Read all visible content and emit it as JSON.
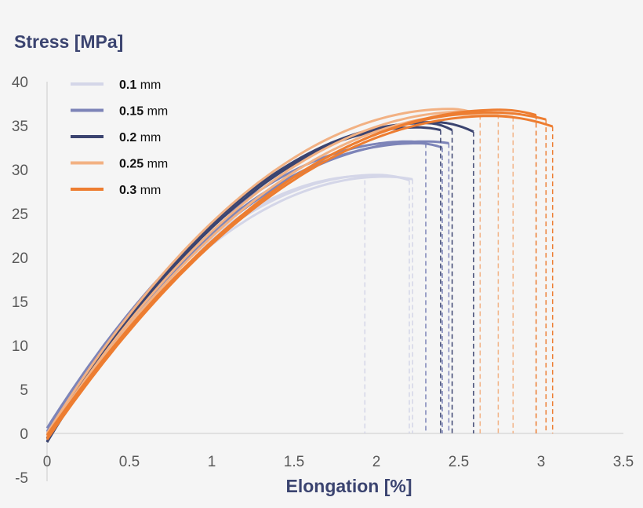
{
  "chart_data": {
    "type": "line",
    "ylabel": "Stress [MPa]",
    "xlabel": "Elongation [%]",
    "xlim": [
      0,
      3.5
    ],
    "ylim": [
      -5,
      40
    ],
    "xticks": [
      "0",
      "0.5",
      "1",
      "1.5",
      "2",
      "2.5",
      "3",
      "3.5"
    ],
    "yticks": [
      "-5",
      "0",
      "5",
      "10",
      "15",
      "20",
      "25",
      "30",
      "35",
      "40"
    ],
    "grid": false,
    "legend_position": "top-left",
    "series": [
      {
        "name_bold": "0.1",
        "name_unit": "mm",
        "color": "#d4d6e8",
        "specimens": [
          {
            "start": 0.3,
            "peak_strain": 1.95,
            "peak_stress": 29.3,
            "break_strain": 1.93,
            "break_stress": 28.8
          },
          {
            "start": 0.0,
            "peak_strain": 2.0,
            "peak_stress": 29.4,
            "break_strain": 2.2,
            "break_stress": 28.8
          },
          {
            "start": -0.3,
            "peak_strain": 2.05,
            "peak_stress": 29.2,
            "break_strain": 2.22,
            "break_stress": 28.9
          }
        ]
      },
      {
        "name_bold": "0.15",
        "name_unit": "mm",
        "color": "#7d84b8",
        "specimens": [
          {
            "start": 0.6,
            "peak_strain": 2.2,
            "peak_stress": 33.2,
            "break_strain": 2.3,
            "break_stress": 33.0
          },
          {
            "start": 0.2,
            "peak_strain": 2.25,
            "peak_stress": 33.0,
            "break_strain": 2.4,
            "break_stress": 32.5
          },
          {
            "start": -0.2,
            "peak_strain": 2.3,
            "peak_stress": 33.2,
            "break_strain": 2.44,
            "break_stress": 33.0
          }
        ]
      },
      {
        "name_bold": "0.2",
        "name_unit": "mm",
        "color": "#3b4470",
        "specimens": [
          {
            "start": -0.6,
            "peak_strain": 2.25,
            "peak_stress": 34.8,
            "break_strain": 2.39,
            "break_stress": 34.5
          },
          {
            "start": -0.9,
            "peak_strain": 2.3,
            "peak_stress": 35.3,
            "break_strain": 2.46,
            "break_stress": 34.5
          },
          {
            "start": -1.0,
            "peak_strain": 2.35,
            "peak_stress": 35.4,
            "break_strain": 2.59,
            "break_stress": 34.3
          }
        ]
      },
      {
        "name_bold": "0.25",
        "name_unit": "mm",
        "color": "#f2b183",
        "specimens": [
          {
            "start": 0.0,
            "peak_strain": 2.45,
            "peak_stress": 36.9,
            "break_strain": 2.63,
            "break_stress": 36.2
          },
          {
            "start": -0.3,
            "peak_strain": 2.55,
            "peak_stress": 36.6,
            "break_strain": 2.74,
            "break_stress": 36.3
          },
          {
            "start": -0.5,
            "peak_strain": 2.6,
            "peak_stress": 36.3,
            "break_strain": 2.83,
            "break_stress": 36.0
          }
        ]
      },
      {
        "name_bold": "0.3",
        "name_unit": "mm",
        "color": "#ed7d31",
        "specimens": [
          {
            "start": -0.2,
            "peak_strain": 2.75,
            "peak_stress": 36.8,
            "break_strain": 2.97,
            "break_stress": 36.2
          },
          {
            "start": -0.5,
            "peak_strain": 2.7,
            "peak_stress": 36.5,
            "break_strain": 3.03,
            "break_stress": 35.7
          },
          {
            "start": -0.7,
            "peak_strain": 2.7,
            "peak_stress": 36.1,
            "break_strain": 3.07,
            "break_stress": 34.9
          }
        ]
      }
    ]
  }
}
